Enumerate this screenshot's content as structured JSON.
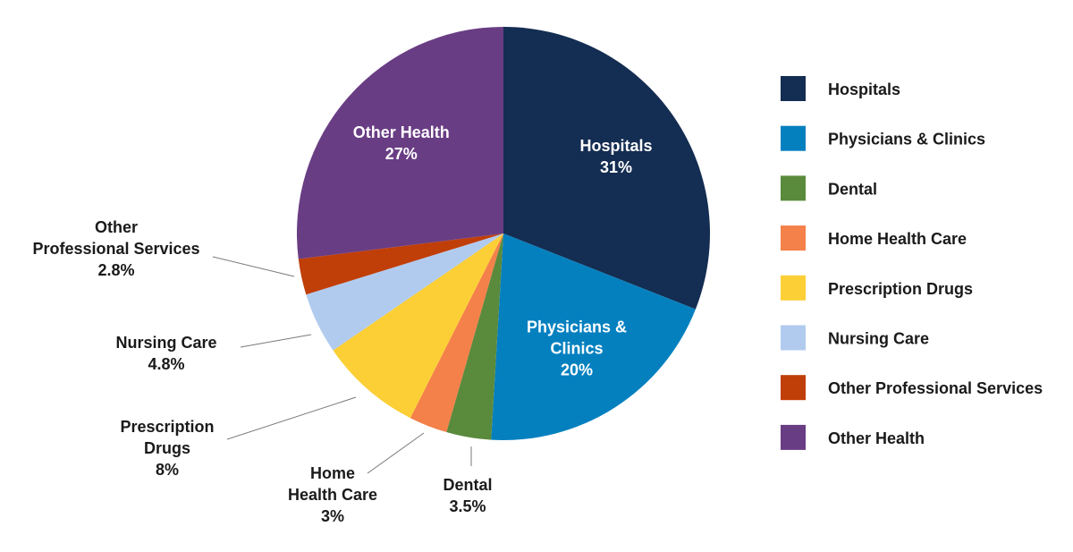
{
  "chart_data": {
    "type": "pie",
    "unit": "%",
    "slices": [
      {
        "label": "Hospitals",
        "value": 31,
        "value_label": "31%",
        "color": "#142d52",
        "display_lines": [
          "Hospitals",
          "31%"
        ],
        "label_placement": "inside"
      },
      {
        "label": "Physicians & Clinics",
        "value": 20,
        "value_label": "20%",
        "color": "#0580bf",
        "display_lines": [
          "Physicians &",
          "Clinics",
          "20%"
        ],
        "label_placement": "inside"
      },
      {
        "label": "Dental",
        "value": 3.5,
        "value_label": "3.5%",
        "color": "#5a8a3c",
        "display_lines": [
          "Dental",
          "3.5%"
        ],
        "label_placement": "outside"
      },
      {
        "label": "Home Health Care",
        "value": 3,
        "value_label": "3%",
        "color": "#f4804a",
        "display_lines": [
          "Home",
          "Health Care",
          "3%"
        ],
        "label_placement": "outside"
      },
      {
        "label": "Prescription Drugs",
        "value": 8,
        "value_label": "8%",
        "color": "#fccf36",
        "display_lines": [
          "Prescription",
          "Drugs",
          "8%"
        ],
        "label_placement": "outside"
      },
      {
        "label": "Nursing Care",
        "value": 4.8,
        "value_label": "4.8%",
        "color": "#b1cbef",
        "display_lines": [
          "Nursing Care",
          "4.8%"
        ],
        "label_placement": "outside"
      },
      {
        "label": "Other Professional Services",
        "value": 2.8,
        "value_label": "2.8%",
        "color": "#c03e08",
        "display_lines": [
          "Other",
          "Professional Services",
          "2.8%"
        ],
        "label_placement": "outside"
      },
      {
        "label": "Other Health",
        "value": 27,
        "value_label": "27%",
        "color": "#693d84",
        "display_lines": [
          "Other Health",
          "27%"
        ],
        "label_placement": "inside"
      }
    ],
    "legend": {
      "position": "right",
      "entries": [
        "Hospitals",
        "Physicians & Clinics",
        "Dental",
        "Home Health Care",
        "Prescription Drugs",
        "Nursing Care",
        "Other Professional Services",
        "Other Health"
      ]
    }
  }
}
